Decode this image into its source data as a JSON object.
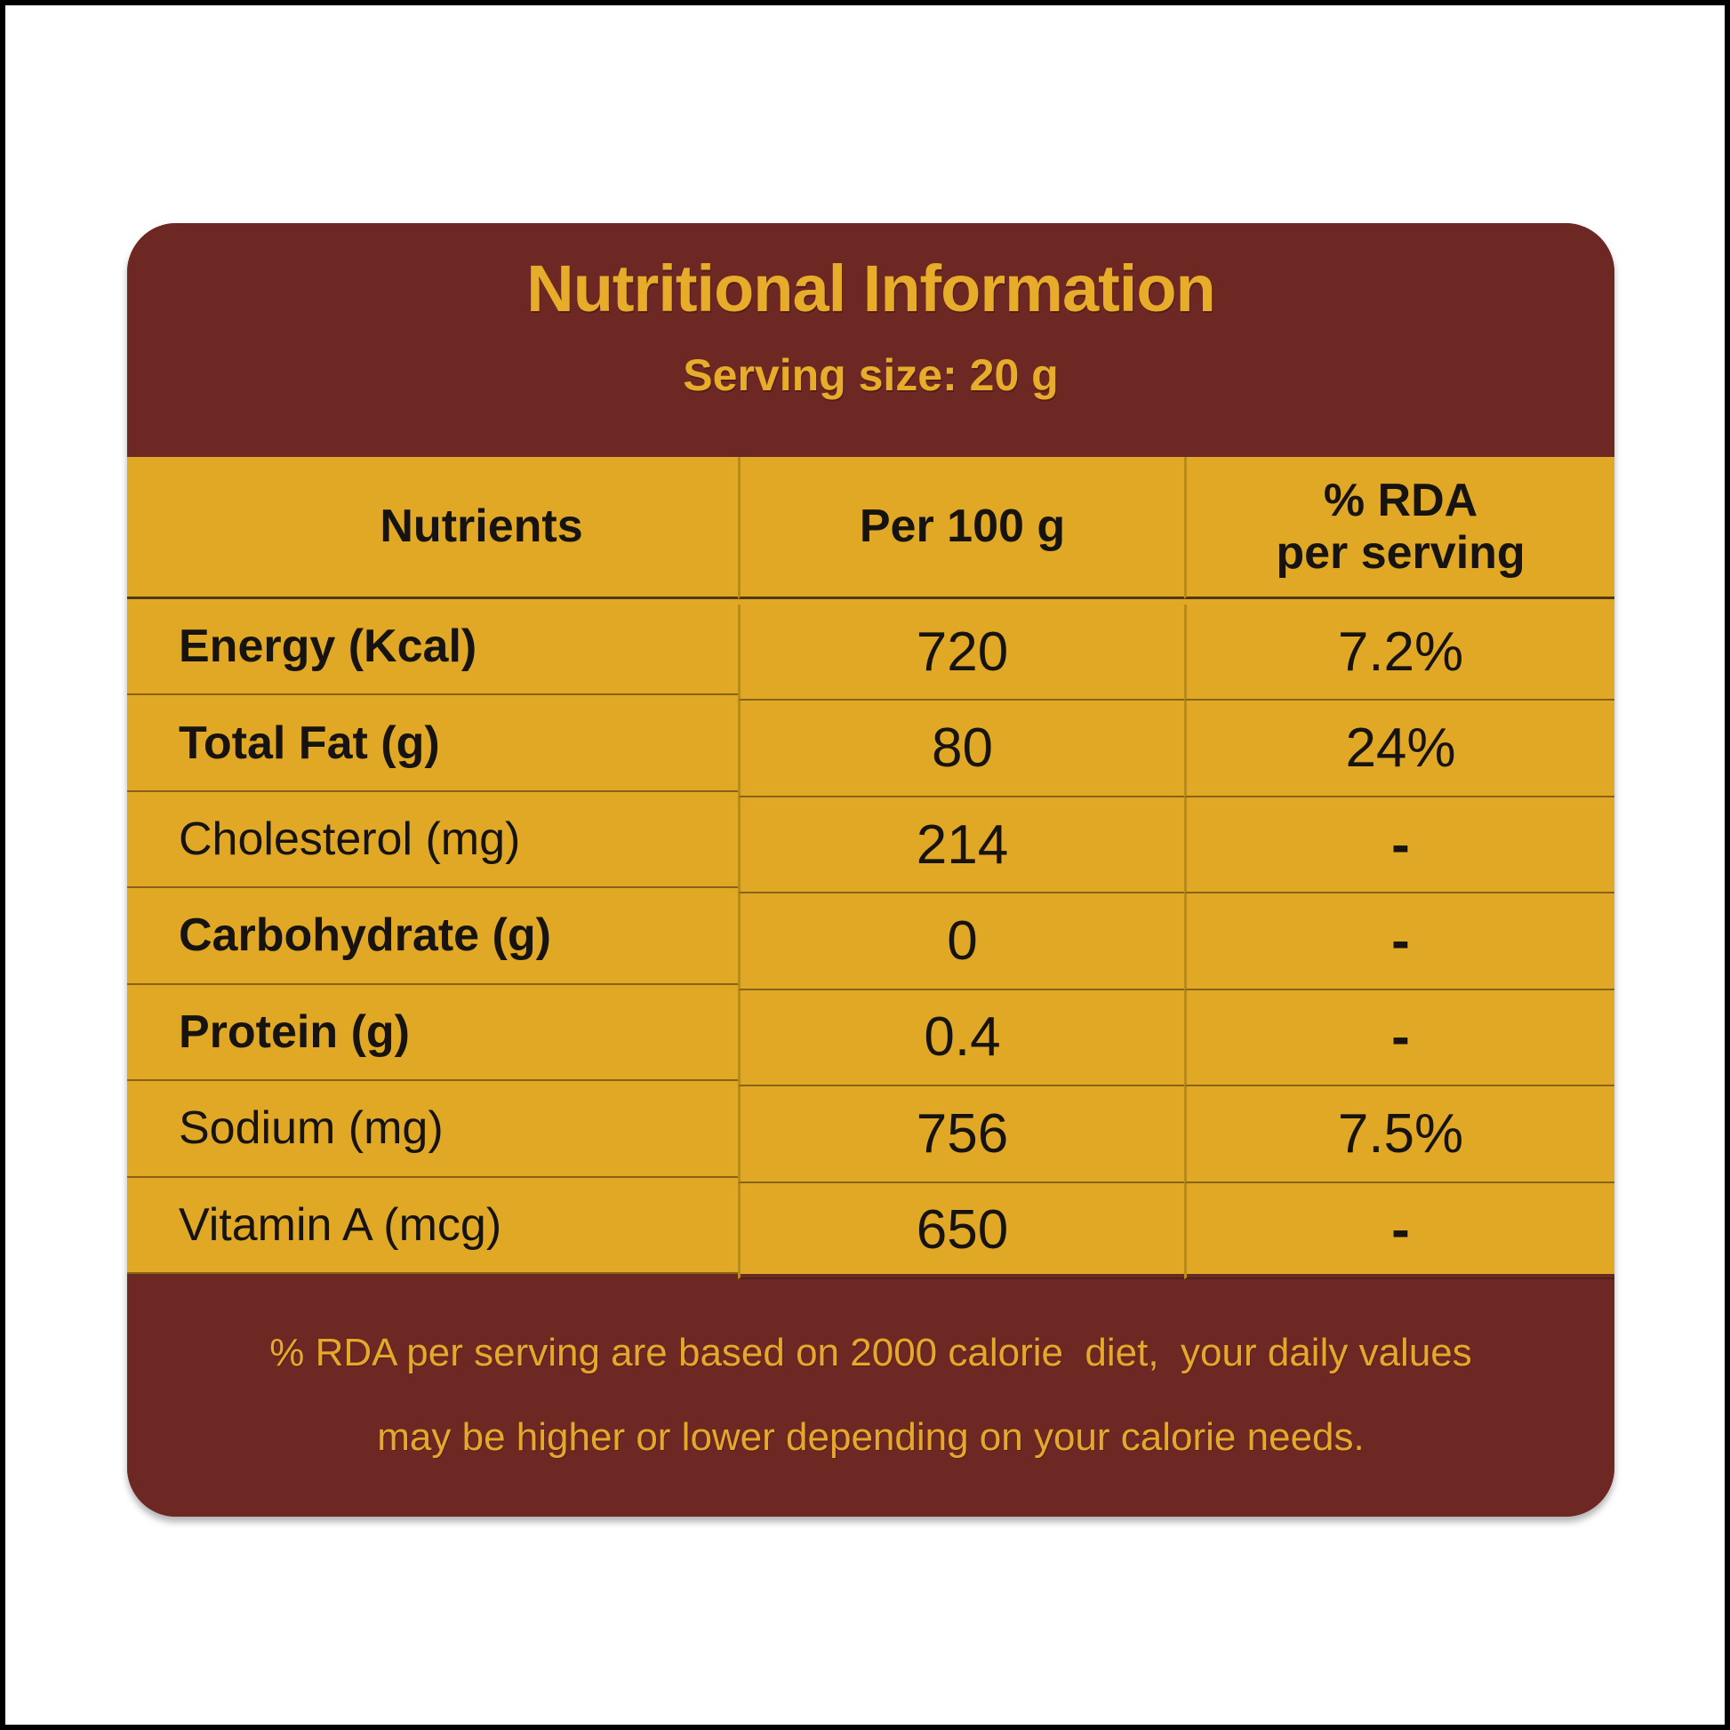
{
  "header": {
    "title": "Nutritional Information",
    "serving_size": "Serving size: 20 g"
  },
  "table": {
    "columns": {
      "nutrients": "Nutrients",
      "per_100g": "Per 100 g",
      "rda_line1": "% RDA",
      "rda_line2": "per serving"
    },
    "rows": [
      {
        "nutrient": "Energy (Kcal)",
        "per_100g": "720",
        "rda": "7.2%"
      },
      {
        "nutrient": "Total Fat (g)",
        "per_100g": "80",
        "rda": "24%"
      },
      {
        "nutrient": "Cholesterol (mg)",
        "per_100g": "214",
        "rda": "-"
      },
      {
        "nutrient": "Carbohydrate (g)",
        "per_100g": "0",
        "rda": "-"
      },
      {
        "nutrient": "Protein (g)",
        "per_100g": "0.4",
        "rda": "-"
      },
      {
        "nutrient": "Sodium (mg)",
        "per_100g": "756",
        "rda": "7.5%"
      },
      {
        "nutrient": "Vitamin A (mcg)",
        "per_100g": "650",
        "rda": "-"
      }
    ]
  },
  "footer": {
    "line1": "% RDA per serving are based on 2000 calorie  diet,  your daily values",
    "line2": "may be higher or lower depending on your calorie needs."
  },
  "colors": {
    "maroon": "#6D2824",
    "gold_background": "#E0A824",
    "gold_text": "#E7AC29",
    "text_black": "#161310",
    "column_separator": "#B98C18"
  }
}
